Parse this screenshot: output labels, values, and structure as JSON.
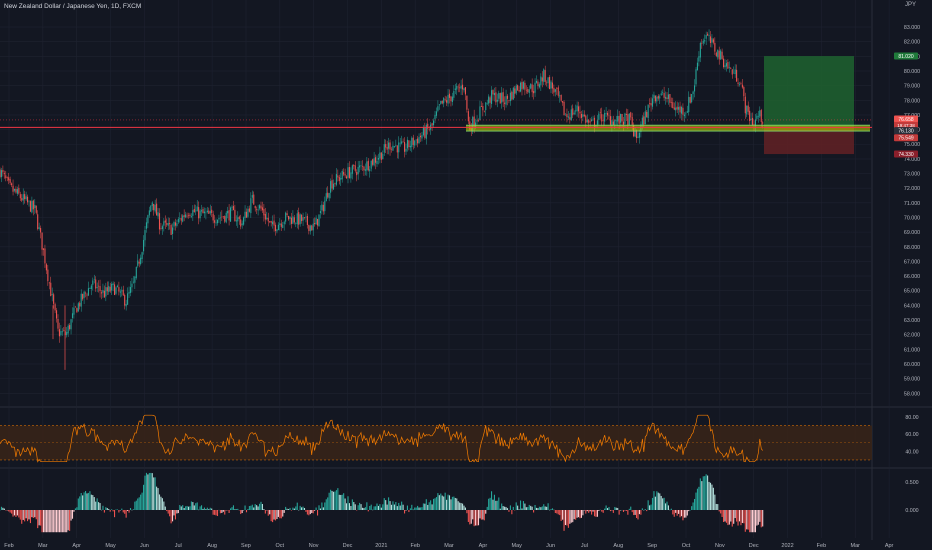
{
  "header": {
    "title": "New Zealand Dollar / Japanese Yen, 1D, FXCM",
    "currency": "JPY"
  },
  "chart_data": [
    {
      "type": "candlestick",
      "title": "New Zealand Dollar / Japanese Yen, 1D, FXCM",
      "yticks": [
        "83.000",
        "82.000",
        "81.000",
        "80.000",
        "79.000",
        "78.000",
        "77.000",
        "76.000",
        "75.000",
        "74.000",
        "73.000",
        "72.000",
        "71.000",
        "70.000",
        "69.000",
        "68.000",
        "67.000",
        "66.000",
        "65.000",
        "64.000",
        "63.000",
        "62.000",
        "61.000",
        "60.000",
        "59.000",
        "58.000"
      ],
      "ylim": [
        57.2,
        84.3
      ],
      "x_month_labels": [
        "Feb",
        "Mar",
        "Apr",
        "May",
        "Jun",
        "Jul",
        "Aug",
        "Sep",
        "Oct",
        "Nov",
        "Dec",
        "2021",
        "Feb",
        "Mar",
        "Apr",
        "May",
        "Jun",
        "Jul",
        "Aug",
        "Sep",
        "Oct",
        "Nov",
        "Dec",
        "2022",
        "Feb",
        "Mar",
        "Apr"
      ],
      "path_anchors": [
        [
          0,
          73.2
        ],
        [
          10,
          72.0
        ],
        [
          22,
          71.3
        ],
        [
          35,
          70.5
        ],
        [
          44,
          67.5
        ],
        [
          52,
          64.5
        ],
        [
          58,
          62.2
        ],
        [
          66,
          62.0
        ],
        [
          76,
          63.8
        ],
        [
          92,
          65.5
        ],
        [
          104,
          64.8
        ],
        [
          114,
          65.2
        ],
        [
          126,
          64.3
        ],
        [
          134,
          65.5
        ],
        [
          142,
          68.0
        ],
        [
          152,
          71.2
        ],
        [
          160,
          69.5
        ],
        [
          172,
          69.2
        ],
        [
          188,
          70.5
        ],
        [
          204,
          70.2
        ],
        [
          218,
          70.0
        ],
        [
          232,
          70.3
        ],
        [
          242,
          69.6
        ],
        [
          252,
          71.2
        ],
        [
          262,
          70.5
        ],
        [
          272,
          69.3
        ],
        [
          286,
          70.0
        ],
        [
          302,
          69.8
        ],
        [
          314,
          69.3
        ],
        [
          322,
          70.5
        ],
        [
          330,
          72.3
        ],
        [
          346,
          73.0
        ],
        [
          362,
          73.4
        ],
        [
          376,
          74.0
        ],
        [
          390,
          75.0
        ],
        [
          404,
          74.7
        ],
        [
          418,
          75.4
        ],
        [
          432,
          76.2
        ],
        [
          440,
          77.6
        ],
        [
          450,
          78.2
        ],
        [
          464,
          79.1
        ],
        [
          469,
          76.1
        ],
        [
          480,
          77.2
        ],
        [
          492,
          78.3
        ],
        [
          506,
          78.0
        ],
        [
          520,
          79.1
        ],
        [
          534,
          78.8
        ],
        [
          544,
          79.7
        ],
        [
          556,
          78.5
        ],
        [
          566,
          76.9
        ],
        [
          578,
          77.4
        ],
        [
          590,
          76.3
        ],
        [
          602,
          76.9
        ],
        [
          616,
          76.6
        ],
        [
          630,
          76.7
        ],
        [
          636,
          75.3
        ],
        [
          642,
          76.4
        ],
        [
          654,
          78.4
        ],
        [
          666,
          78.2
        ],
        [
          676,
          77.4
        ],
        [
          686,
          77.3
        ],
        [
          694,
          78.9
        ],
        [
          700,
          81.9
        ],
        [
          706,
          82.4
        ],
        [
          716,
          81.4
        ],
        [
          730,
          80.1
        ],
        [
          740,
          79.4
        ],
        [
          746,
          77.3
        ],
        [
          754,
          76.4
        ],
        [
          758,
          77.0
        ],
        [
          764,
          76.7
        ]
      ],
      "current_price": "76.658",
      "price_tag_sub": "19:47:38",
      "horizontal_levels": [
        "76.150"
      ],
      "support_zone": [
        75.9,
        76.3
      ],
      "long_position": {
        "target": "81.020",
        "entry": "76.130",
        "stop": "74.330",
        "extra_label": "75.549"
      }
    },
    {
      "type": "line",
      "title": "",
      "yticks": [
        "80.00",
        "60.00",
        "40.00"
      ],
      "ylim": [
        23,
        88
      ],
      "band": [
        30,
        70
      ],
      "mid_line": 50
    },
    {
      "type": "histogram",
      "title": "",
      "yticks": [
        "0.500",
        "0.000"
      ],
      "ylim": [
        -0.45,
        0.72
      ]
    }
  ],
  "colors": {
    "up": "#26a69a",
    "down": "#ef5350",
    "rsi": "#f57c00",
    "level": "#f23645",
    "zone": "#c6d400",
    "target": "#1e5e2f",
    "stop": "#5e2025",
    "grid": "#1e2230"
  }
}
